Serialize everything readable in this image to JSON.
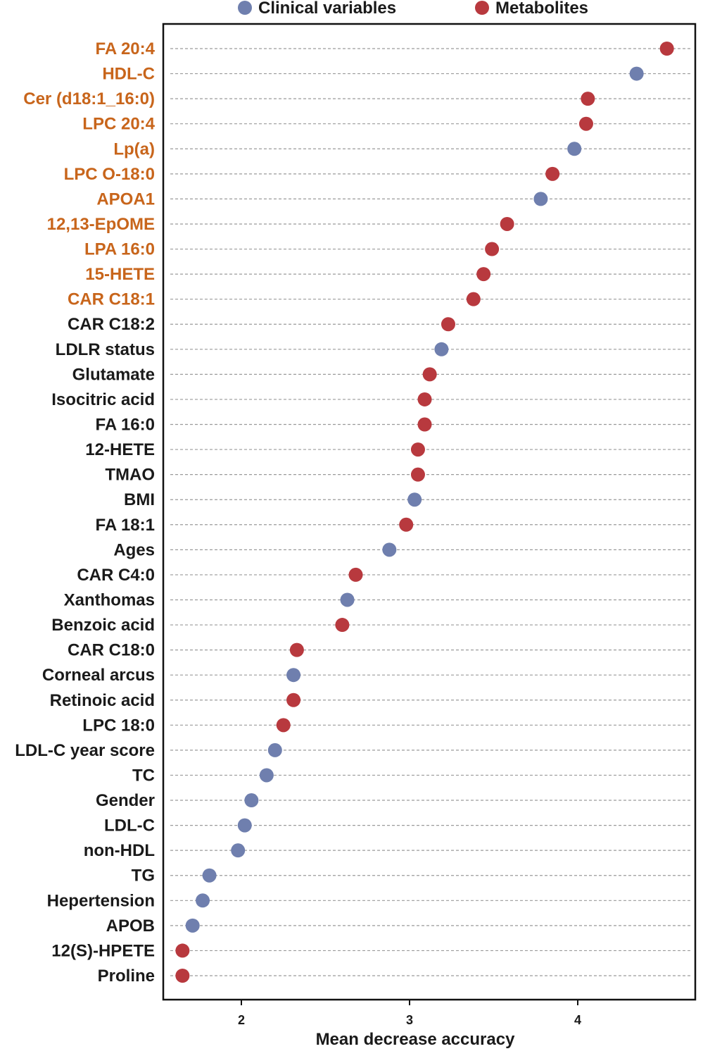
{
  "chart_data": {
    "type": "scatter",
    "xlabel": "Mean decrease accuracy",
    "ylabel": "",
    "xlim": [
      1.55,
      4.7
    ],
    "xticks": [
      2,
      3,
      4
    ],
    "xtick_labels": [
      "2",
      "3",
      "4"
    ],
    "grid": "horizontal dashed",
    "legend_position": "top",
    "series": [
      {
        "name": "Clinical variables",
        "key": "clinical",
        "color": "#6f7fae"
      },
      {
        "name": "Metabolites",
        "key": "metabolite",
        "color": "#b8393e"
      }
    ],
    "colors": {
      "highlight_label": "#c8651b",
      "normal_label": "#1a1a1a"
    },
    "points": [
      {
        "label": "FA 20:4",
        "value": 4.53,
        "group": "metabolite",
        "highlight": true
      },
      {
        "label": "HDL-C",
        "value": 4.35,
        "group": "clinical",
        "highlight": true
      },
      {
        "label": "Cer (d18:1_16:0)",
        "value": 4.06,
        "group": "metabolite",
        "highlight": true
      },
      {
        "label": "LPC 20:4",
        "value": 4.05,
        "group": "metabolite",
        "highlight": true
      },
      {
        "label": "Lp(a)",
        "value": 3.98,
        "group": "clinical",
        "highlight": true
      },
      {
        "label": "LPC O-18:0",
        "value": 3.85,
        "group": "metabolite",
        "highlight": true
      },
      {
        "label": "APOA1",
        "value": 3.78,
        "group": "clinical",
        "highlight": true
      },
      {
        "label": "12,13-EpOME",
        "value": 3.58,
        "group": "metabolite",
        "highlight": true
      },
      {
        "label": "LPA 16:0",
        "value": 3.49,
        "group": "metabolite",
        "highlight": true
      },
      {
        "label": "15-HETE",
        "value": 3.44,
        "group": "metabolite",
        "highlight": true
      },
      {
        "label": "CAR C18:1",
        "value": 3.38,
        "group": "metabolite",
        "highlight": true
      },
      {
        "label": "CAR C18:2",
        "value": 3.23,
        "group": "metabolite",
        "highlight": false
      },
      {
        "label": "LDLR status",
        "value": 3.19,
        "group": "clinical",
        "highlight": false
      },
      {
        "label": "Glutamate",
        "value": 3.12,
        "group": "metabolite",
        "highlight": false
      },
      {
        "label": "Isocitric acid",
        "value": 3.09,
        "group": "metabolite",
        "highlight": false
      },
      {
        "label": "FA 16:0",
        "value": 3.09,
        "group": "metabolite",
        "highlight": false
      },
      {
        "label": "12-HETE",
        "value": 3.05,
        "group": "metabolite",
        "highlight": false
      },
      {
        "label": "TMAO",
        "value": 3.05,
        "group": "metabolite",
        "highlight": false
      },
      {
        "label": "BMI",
        "value": 3.03,
        "group": "clinical",
        "highlight": false
      },
      {
        "label": "FA 18:1",
        "value": 2.98,
        "group": "metabolite",
        "highlight": false
      },
      {
        "label": "Ages",
        "value": 2.88,
        "group": "clinical",
        "highlight": false
      },
      {
        "label": "CAR C4:0",
        "value": 2.68,
        "group": "metabolite",
        "highlight": false
      },
      {
        "label": "Xanthomas",
        "value": 2.63,
        "group": "clinical",
        "highlight": false
      },
      {
        "label": "Benzoic acid",
        "value": 2.6,
        "group": "metabolite",
        "highlight": false
      },
      {
        "label": "CAR C18:0",
        "value": 2.33,
        "group": "metabolite",
        "highlight": false
      },
      {
        "label": "Corneal arcus",
        "value": 2.31,
        "group": "clinical",
        "highlight": false
      },
      {
        "label": "Retinoic acid",
        "value": 2.31,
        "group": "metabolite",
        "highlight": false
      },
      {
        "label": "LPC 18:0",
        "value": 2.25,
        "group": "metabolite",
        "highlight": false
      },
      {
        "label": "LDL-C year score",
        "value": 2.2,
        "group": "clinical",
        "highlight": false
      },
      {
        "label": "TC",
        "value": 2.15,
        "group": "clinical",
        "highlight": false
      },
      {
        "label": "Gender",
        "value": 2.06,
        "group": "clinical",
        "highlight": false
      },
      {
        "label": "LDL-C",
        "value": 2.02,
        "group": "clinical",
        "highlight": false
      },
      {
        "label": "non-HDL",
        "value": 1.98,
        "group": "clinical",
        "highlight": false
      },
      {
        "label": "TG",
        "value": 1.81,
        "group": "clinical",
        "highlight": false
      },
      {
        "label": "Hepertension",
        "value": 1.77,
        "group": "clinical",
        "highlight": false
      },
      {
        "label": "APOB",
        "value": 1.71,
        "group": "clinical",
        "highlight": false
      },
      {
        "label": "12(S)-HPETE",
        "value": 1.65,
        "group": "metabolite",
        "highlight": false
      },
      {
        "label": "Proline",
        "value": 1.65,
        "group": "metabolite",
        "highlight": false
      }
    ]
  }
}
